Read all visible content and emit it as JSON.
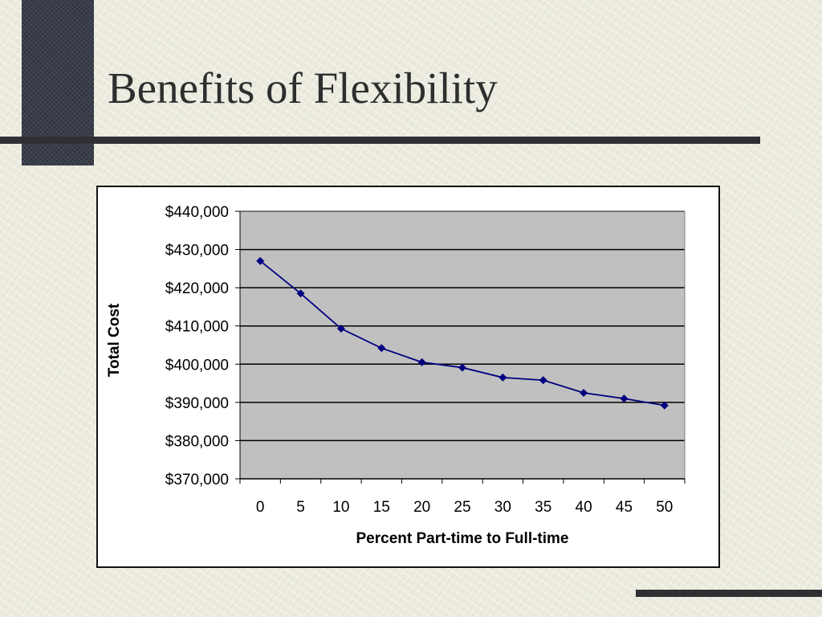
{
  "slide": {
    "title": "Benefits of Flexibility"
  },
  "colors": {
    "accent_block": "#3a3d4a",
    "rule": "#2f2f34",
    "plot_area": "#c0c0c0",
    "series_line": "#000080"
  },
  "chart_data": {
    "type": "line",
    "title": "",
    "xlabel": "Percent Part-time to Full-time",
    "ylabel": "Total Cost",
    "x": [
      0,
      5,
      10,
      15,
      20,
      25,
      30,
      35,
      40,
      45,
      50
    ],
    "categories": [
      "0",
      "5",
      "10",
      "15",
      "20",
      "25",
      "30",
      "35",
      "40",
      "45",
      "50"
    ],
    "series": [
      {
        "values": [
          427000,
          418500,
          409300,
          404200,
          400500,
          399100,
          396500,
          395800,
          392500,
          391000,
          389200
        ]
      }
    ],
    "ylim": [
      370000,
      440000
    ],
    "yticks": [
      370000,
      380000,
      390000,
      400000,
      410000,
      420000,
      430000,
      440000
    ],
    "ytick_labels": [
      "$370,000",
      "$380,000",
      "$390,000",
      "$400,000",
      "$410,000",
      "$420,000",
      "$430,000",
      "$440,000"
    ],
    "grid": true,
    "legend": "none",
    "marker": "diamond"
  }
}
